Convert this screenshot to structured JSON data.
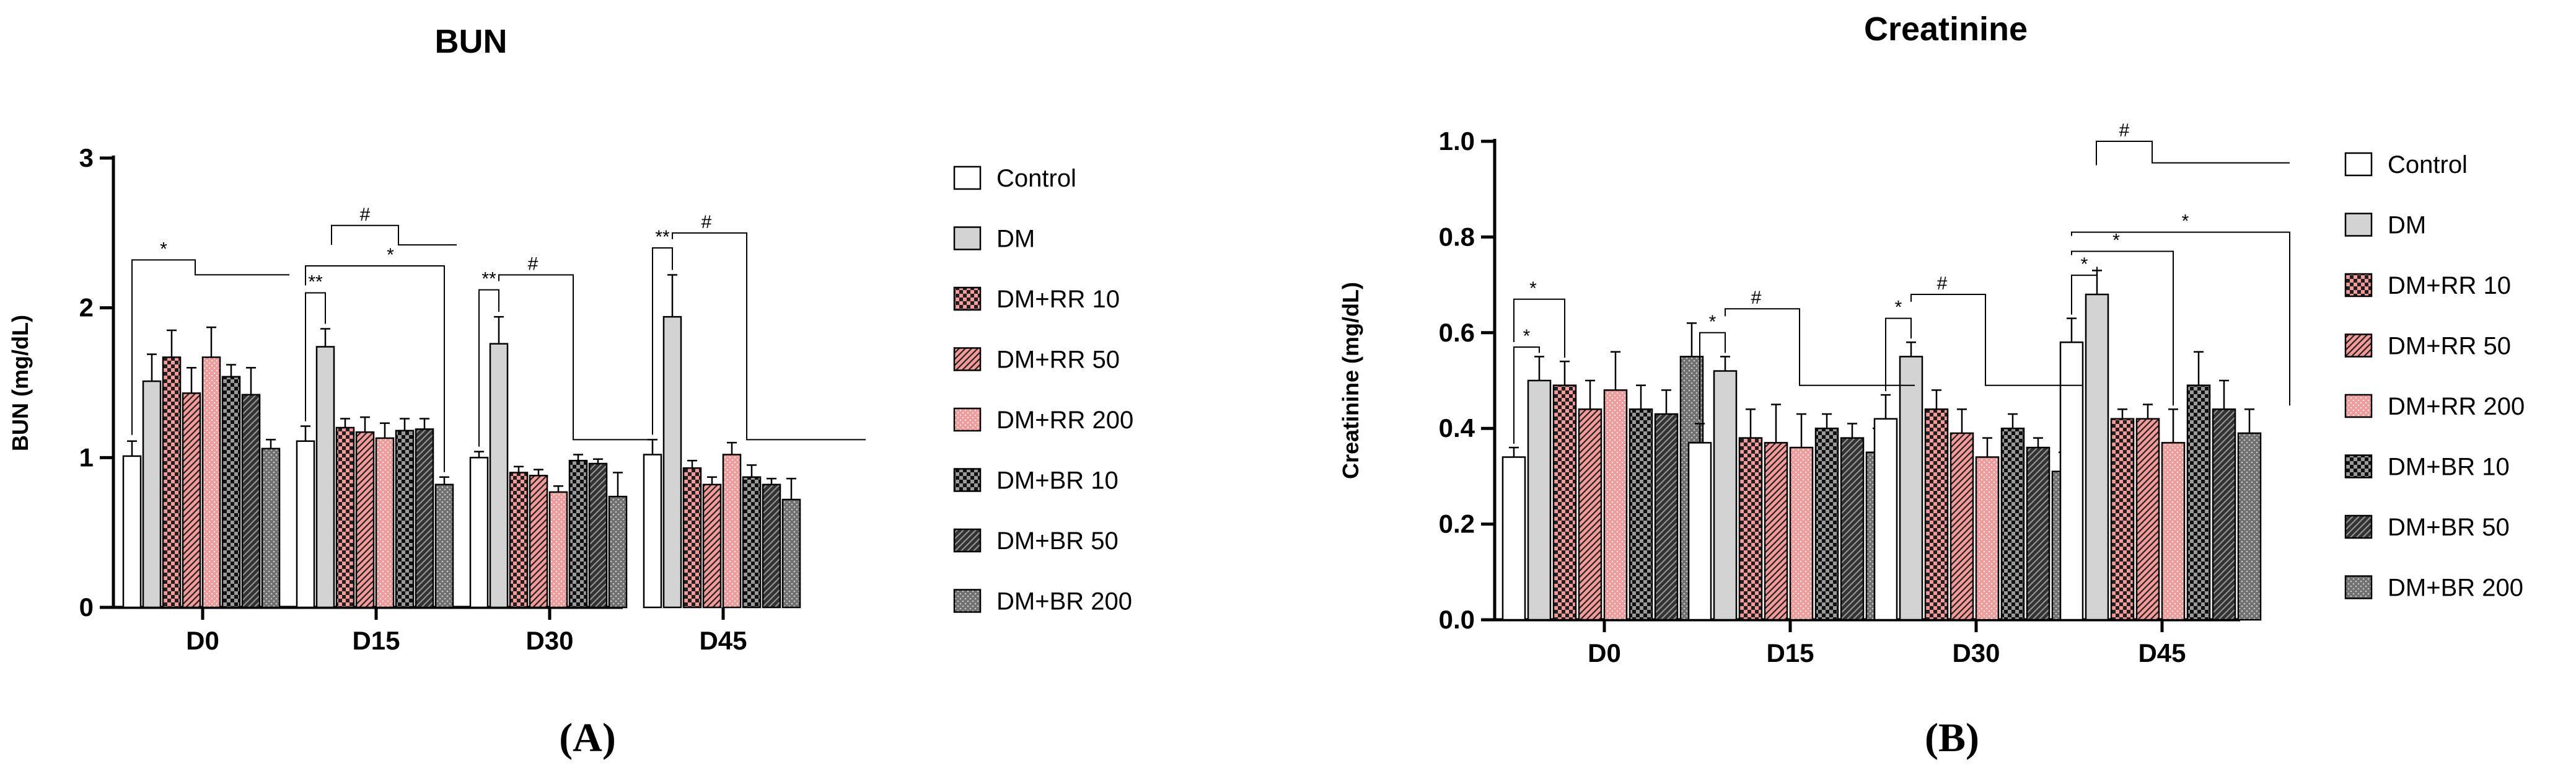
{
  "chart_data": [
    {
      "type": "bar",
      "title": "BUN",
      "panel_label": "(A)",
      "xlabel": "",
      "ylabel": "BUN (mg/dL)",
      "ylim": [
        0,
        3
      ],
      "yticks": [
        "0",
        "1",
        "2",
        "3"
      ],
      "categories": [
        "D0",
        "D15",
        "D30",
        "D45"
      ],
      "series": [
        {
          "name": "Control",
          "values": [
            1.01,
            1.11,
            1.0,
            1.02
          ],
          "errors": [
            0.1,
            0.1,
            0.04,
            0.1
          ]
        },
        {
          "name": "DM",
          "values": [
            1.51,
            1.74,
            1.76,
            1.94
          ],
          "errors": [
            0.18,
            0.12,
            0.18,
            0.28
          ]
        },
        {
          "name": "DM+RR 10",
          "values": [
            1.67,
            1.2,
            0.9,
            0.93
          ],
          "errors": [
            0.18,
            0.06,
            0.04,
            0.05
          ]
        },
        {
          "name": "DM+RR 50",
          "values": [
            1.43,
            1.17,
            0.88,
            0.82
          ],
          "errors": [
            0.17,
            0.1,
            0.04,
            0.05
          ]
        },
        {
          "name": "DM+RR 200",
          "values": [
            1.67,
            1.13,
            0.77,
            1.02
          ],
          "errors": [
            0.2,
            0.1,
            0.04,
            0.08
          ]
        },
        {
          "name": "DM+BR 10",
          "values": [
            1.54,
            1.18,
            0.98,
            0.87
          ],
          "errors": [
            0.08,
            0.08,
            0.04,
            0.08
          ]
        },
        {
          "name": "DM+BR 50",
          "values": [
            1.42,
            1.19,
            0.96,
            0.82
          ],
          "errors": [
            0.18,
            0.07,
            0.03,
            0.04
          ]
        },
        {
          "name": "DM+BR 200",
          "values": [
            1.06,
            0.82,
            0.74,
            0.72
          ],
          "errors": [
            0.06,
            0.05,
            0.16,
            0.14
          ]
        }
      ],
      "significance": [
        {
          "label": "*",
          "category": "D0"
        },
        {
          "label": "**",
          "category": "D15"
        },
        {
          "label": "#",
          "category": "D15"
        },
        {
          "label": "*",
          "category": "D15"
        },
        {
          "label": "**",
          "category": "D30"
        },
        {
          "label": "#",
          "category": "D30"
        },
        {
          "label": "**",
          "category": "D45"
        },
        {
          "label": "#",
          "category": "D45"
        }
      ],
      "legend_placement": "right"
    },
    {
      "type": "bar",
      "title": "Creatinine",
      "panel_label": "(B)",
      "xlabel": "",
      "ylabel": "Creatinine (mg/dL)",
      "ylim": [
        0,
        1.0
      ],
      "yticks": [
        "0.0",
        "0.2",
        "0.4",
        "0.6",
        "0.8",
        "1.0"
      ],
      "categories": [
        "D0",
        "D15",
        "D30",
        "D45"
      ],
      "series": [
        {
          "name": "Control",
          "values": [
            0.34,
            0.37,
            0.42,
            0.58
          ],
          "errors": [
            0.02,
            0.04,
            0.05,
            0.05
          ]
        },
        {
          "name": "DM",
          "values": [
            0.5,
            0.52,
            0.55,
            0.68
          ],
          "errors": [
            0.05,
            0.03,
            0.03,
            0.05
          ]
        },
        {
          "name": "DM+RR 10",
          "values": [
            0.49,
            0.38,
            0.44,
            0.42
          ],
          "errors": [
            0.05,
            0.06,
            0.04,
            0.02
          ]
        },
        {
          "name": "DM+RR 50",
          "values": [
            0.44,
            0.37,
            0.39,
            0.42
          ],
          "errors": [
            0.06,
            0.08,
            0.05,
            0.03
          ]
        },
        {
          "name": "DM+RR 200",
          "values": [
            0.48,
            0.36,
            0.34,
            0.37
          ],
          "errors": [
            0.08,
            0.07,
            0.04,
            0.07
          ]
        },
        {
          "name": "DM+BR 10",
          "values": [
            0.44,
            0.4,
            0.4,
            0.49
          ],
          "errors": [
            0.05,
            0.03,
            0.03,
            0.07
          ]
        },
        {
          "name": "DM+BR 50",
          "values": [
            0.43,
            0.38,
            0.36,
            0.44
          ],
          "errors": [
            0.05,
            0.03,
            0.02,
            0.06
          ]
        },
        {
          "name": "DM+BR 200",
          "values": [
            0.55,
            0.35,
            0.31,
            0.39
          ],
          "errors": [
            0.07,
            0.05,
            0.04,
            0.05
          ]
        }
      ],
      "significance": [
        {
          "label": "*",
          "category": "D0"
        },
        {
          "label": "*",
          "category": "D0"
        },
        {
          "label": "*",
          "category": "D15"
        },
        {
          "label": "#",
          "category": "D15"
        },
        {
          "label": "*",
          "category": "D30"
        },
        {
          "label": "#",
          "category": "D30"
        },
        {
          "label": "#",
          "category": "D45"
        },
        {
          "label": "*",
          "category": "D45"
        },
        {
          "label": "*",
          "category": "D45"
        },
        {
          "label": "*",
          "category": "D45"
        }
      ],
      "legend_placement": "right"
    }
  ]
}
